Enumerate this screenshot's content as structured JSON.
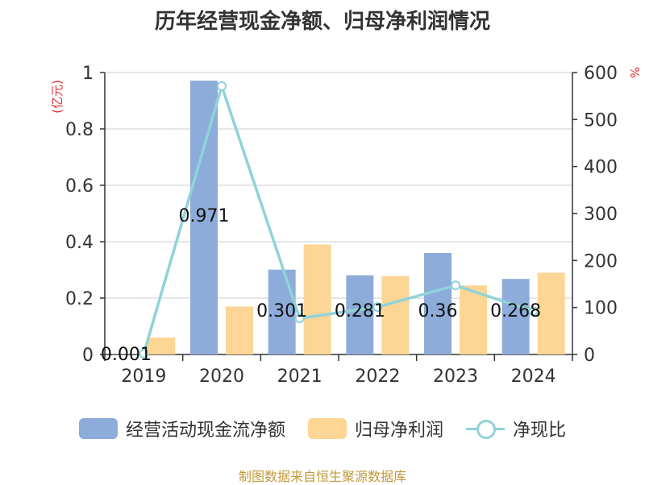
{
  "chart_data": {
    "type": "bar+line",
    "title": "历年经营现金净额、归母净利润情况",
    "categories": [
      "2019",
      "2020",
      "2021",
      "2022",
      "2023",
      "2024"
    ],
    "left_axis": {
      "unit": "(亿元)",
      "ylim": [
        0,
        1
      ],
      "ticks": [
        0,
        0.2,
        0.4,
        0.6,
        0.8,
        1
      ],
      "tick_labels": [
        "0",
        "0.2",
        "0.4",
        "0.6",
        "0.8",
        "1"
      ]
    },
    "right_axis": {
      "unit": "%",
      "ylim": [
        0,
        600
      ],
      "ticks": [
        0,
        100,
        200,
        300,
        400,
        500,
        600
      ]
    },
    "series": [
      {
        "name": "经营活动现金流净额",
        "type": "bar",
        "axis": "left",
        "color": "#8eacd9",
        "values": [
          0.001,
          0.971,
          0.301,
          0.281,
          0.36,
          0.268
        ],
        "labels": [
          "0.001",
          "0.971",
          "0.301",
          "0.281",
          "0.36",
          "0.268"
        ]
      },
      {
        "name": "归母净利润",
        "type": "bar",
        "axis": "left",
        "color": "#fdd594",
        "values": [
          0.06,
          0.17,
          0.39,
          0.278,
          0.245,
          0.29
        ]
      },
      {
        "name": "净现比",
        "type": "line",
        "axis": "right",
        "color": "#8fd3d9",
        "values": [
          2,
          571,
          77,
          101,
          147,
          92
        ]
      }
    ],
    "grid": true,
    "legend_position": "bottom"
  },
  "source_note": "制图数据来自恒生聚源数据库"
}
